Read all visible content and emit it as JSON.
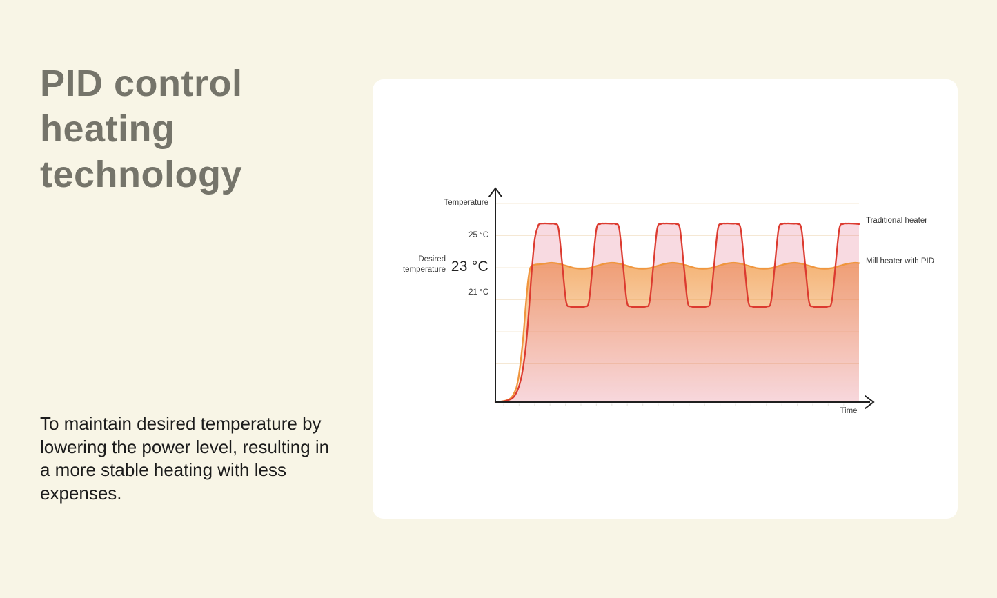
{
  "page": {
    "background_color": "#f8f5e6"
  },
  "hero": {
    "title": "PID control heating technology",
    "title_color": "#75746a",
    "description": "To maintain desired temperature by lowering the power level, resulting in a more stable heating with less expenses."
  },
  "chart_card": {
    "background_color": "#ffffff"
  },
  "chart_data": {
    "type": "line",
    "title": "",
    "x_axis": {
      "label": "Time",
      "range": [
        0,
        12
      ],
      "unit": "relative time, unlabeled"
    },
    "y_axis": {
      "label": "Temperature",
      "unit": "°C",
      "axis_bottom_c": 14.6,
      "axis_top_c": 28.4,
      "gridline_values_c": [
        27,
        25,
        23,
        21,
        19,
        17
      ],
      "grid": "faint horizontal lines every 2 °C"
    },
    "ticks": [
      {
        "value_c": 25,
        "label": "25 °C",
        "emphasized": false
      },
      {
        "value_c": 23,
        "label": "23 °C",
        "emphasized": true
      },
      {
        "value_c": 21,
        "label": "21 °C",
        "emphasized": false
      }
    ],
    "desired_temperature": {
      "label": "Desired temperature",
      "value_c": 23
    },
    "legend_position": "right, labels aligned to curve levels",
    "series": [
      {
        "name": "Traditional heater",
        "line_color": "#dc3b30",
        "fill_color": "rgba(225,85,120,0.22)",
        "behavior": "overshoots and oscillates between ~20.5 °C and ~25.8 °C",
        "points": [
          [
            0,
            14.6
          ],
          [
            0.4,
            14.72
          ],
          [
            0.65,
            15.05
          ],
          [
            0.85,
            16.1
          ],
          [
            1,
            18
          ],
          [
            1.1,
            20.2
          ],
          [
            1.2,
            22.8
          ],
          [
            1.3,
            24.8
          ],
          [
            1.4,
            25.55
          ],
          [
            1.458,
            25.72
          ],
          [
            1.583,
            25.75
          ],
          [
            1.708,
            25.75
          ],
          [
            1.833,
            25.74
          ],
          [
            1.958,
            25.72
          ],
          [
            2.083,
            25.42
          ],
          [
            2.209,
            23.15
          ],
          [
            2.334,
            20.88
          ],
          [
            2.459,
            20.58
          ],
          [
            2.584,
            20.55
          ],
          [
            2.71,
            20.55
          ],
          [
            2.835,
            20.55
          ],
          [
            2.96,
            20.58
          ],
          [
            3.085,
            20.88
          ],
          [
            3.21,
            23.15
          ],
          [
            3.335,
            25.42
          ],
          [
            3.46,
            25.72
          ],
          [
            3.585,
            25.75
          ],
          [
            3.712,
            25.75
          ],
          [
            3.837,
            25.74
          ],
          [
            3.962,
            25.72
          ],
          [
            4.087,
            25.42
          ],
          [
            4.213,
            23.15
          ],
          [
            4.338,
            20.88
          ],
          [
            4.463,
            20.58
          ],
          [
            4.588,
            20.55
          ],
          [
            4.714,
            20.55
          ],
          [
            4.839,
            20.55
          ],
          [
            4.964,
            20.58
          ],
          [
            5.089,
            20.88
          ],
          [
            5.214,
            23.15
          ],
          [
            5.339,
            25.42
          ],
          [
            5.464,
            25.72
          ],
          [
            5.589,
            25.75
          ],
          [
            5.716,
            25.75
          ],
          [
            5.841,
            25.74
          ],
          [
            5.966,
            25.72
          ],
          [
            6.091,
            25.42
          ],
          [
            6.217,
            23.15
          ],
          [
            6.342,
            20.88
          ],
          [
            6.467,
            20.58
          ],
          [
            6.592,
            20.55
          ],
          [
            6.718,
            20.55
          ],
          [
            6.843,
            20.55
          ],
          [
            6.968,
            20.58
          ],
          [
            7.093,
            20.88
          ],
          [
            7.218,
            23.15
          ],
          [
            7.343,
            25.42
          ],
          [
            7.468,
            25.72
          ],
          [
            7.593,
            25.75
          ],
          [
            7.72,
            25.75
          ],
          [
            7.845,
            25.74
          ],
          [
            7.97,
            25.72
          ],
          [
            8.095,
            25.42
          ],
          [
            8.221,
            23.15
          ],
          [
            8.346,
            20.88
          ],
          [
            8.471,
            20.58
          ],
          [
            8.596,
            20.55
          ],
          [
            8.722,
            20.55
          ],
          [
            8.847,
            20.55
          ],
          [
            8.972,
            20.58
          ],
          [
            9.097,
            20.88
          ],
          [
            9.222,
            23.15
          ],
          [
            9.347,
            25.42
          ],
          [
            9.472,
            25.72
          ],
          [
            9.597,
            25.75
          ],
          [
            9.724,
            25.75
          ],
          [
            9.849,
            25.74
          ],
          [
            9.974,
            25.72
          ],
          [
            10.099,
            25.42
          ],
          [
            10.225,
            23.15
          ],
          [
            10.35,
            20.88
          ],
          [
            10.475,
            20.58
          ],
          [
            10.6,
            20.55
          ],
          [
            10.726,
            20.55
          ],
          [
            10.851,
            20.55
          ],
          [
            10.976,
            20.58
          ],
          [
            11.101,
            20.88
          ],
          [
            11.226,
            23.15
          ],
          [
            11.351,
            25.42
          ],
          [
            11.476,
            25.72
          ],
          [
            11.601,
            25.75
          ],
          [
            11.728,
            25.75
          ],
          [
            11.853,
            25.74
          ],
          [
            11.978,
            25.72
          ],
          [
            12,
            25.71
          ]
        ]
      },
      {
        "name": "Mill heater with PID",
        "line_color": "#f0963e",
        "fill_gradient": {
          "from": "rgba(240,150,64,0.75)",
          "to": "rgba(240,150,64,0.02)"
        },
        "behavior": "rises once and holds ~23 °C with gentle ripple (±0.2 °C)",
        "points": [
          [
            0,
            14.6
          ],
          [
            0.4,
            14.75
          ],
          [
            0.6,
            15.1
          ],
          [
            0.75,
            16
          ],
          [
            0.9,
            18.3
          ],
          [
            1,
            20.6
          ],
          [
            1.08,
            22.2
          ],
          [
            1.16,
            23.02
          ],
          [
            1.3,
            23.18
          ],
          [
            1.45,
            23.21
          ],
          [
            1.594,
            23.24
          ],
          [
            1.845,
            23.3
          ],
          [
            2.096,
            23.24
          ],
          [
            2.346,
            23.11
          ],
          [
            2.597,
            22.98
          ],
          [
            2.847,
            22.93
          ],
          [
            3.098,
            22.98
          ],
          [
            3.348,
            23.11
          ],
          [
            3.599,
            23.24
          ],
          [
            3.849,
            23.3
          ],
          [
            4.1,
            23.24
          ],
          [
            4.35,
            23.11
          ],
          [
            4.601,
            22.98
          ],
          [
            4.851,
            22.93
          ],
          [
            5.102,
            22.98
          ],
          [
            5.352,
            23.11
          ],
          [
            5.603,
            23.24
          ],
          [
            5.853,
            23.3
          ],
          [
            6.104,
            23.24
          ],
          [
            6.354,
            23.11
          ],
          [
            6.605,
            22.98
          ],
          [
            6.855,
            22.93
          ],
          [
            7.106,
            22.98
          ],
          [
            7.356,
            23.11
          ],
          [
            7.607,
            23.24
          ],
          [
            7.857,
            23.3
          ],
          [
            8.108,
            23.24
          ],
          [
            8.358,
            23.11
          ],
          [
            8.609,
            22.98
          ],
          [
            8.859,
            22.93
          ],
          [
            9.11,
            22.98
          ],
          [
            9.36,
            23.11
          ],
          [
            9.611,
            23.24
          ],
          [
            9.861,
            23.3
          ],
          [
            10.112,
            23.24
          ],
          [
            10.362,
            23.11
          ],
          [
            10.613,
            22.98
          ],
          [
            10.863,
            22.93
          ],
          [
            11.114,
            22.98
          ],
          [
            11.364,
            23.11
          ],
          [
            11.615,
            23.24
          ],
          [
            11.865,
            23.3
          ],
          [
            12,
            23.28
          ]
        ]
      }
    ],
    "style": {
      "gridline_color": "#f5e8d4",
      "axis_color": "#1f1f1f",
      "tick_mark_color": "#e9e9e4"
    }
  }
}
